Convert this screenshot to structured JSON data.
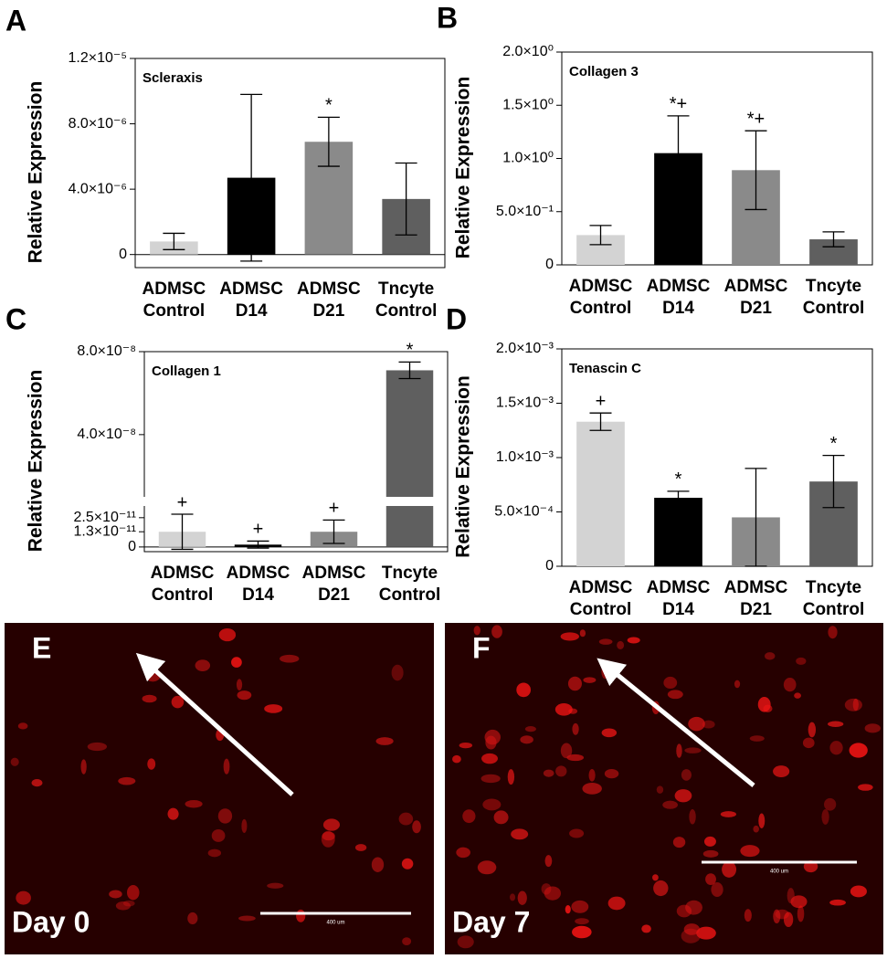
{
  "chart_data": [
    {
      "type": "bar",
      "letter": "A",
      "title": "Scleraxis",
      "ylabel": "Relative Expression",
      "categories": [
        [
          "ADMSC",
          "Control"
        ],
        [
          "ADMSC",
          "D14"
        ],
        [
          "ADMSC",
          "D21"
        ],
        [
          "Tncyte",
          "Control"
        ]
      ],
      "values": [
        8e-07,
        4.7e-06,
        6.9e-06,
        3.4e-06
      ],
      "errors": [
        5e-07,
        5.1e-06,
        1.5e-06,
        2.2e-06
      ],
      "annotations": [
        null,
        null,
        "*",
        null
      ],
      "colors": [
        "#d3d3d3",
        "#000000",
        "#8a8a8a",
        "#5f5f5f"
      ],
      "ylim": [
        -8e-07,
        1.2e-05
      ],
      "yticks": [
        0,
        {
          "value": 4e-06,
          "label": "4.0×10⁻⁶"
        },
        {
          "value": 8e-06,
          "label": "8.0×10⁻⁶"
        },
        {
          "value": 1.2e-05,
          "label": "1.2×10⁻⁵"
        }
      ]
    },
    {
      "type": "bar",
      "letter": "B",
      "title": "Collagen 3",
      "ylabel": "Relative Expression",
      "categories": [
        [
          "ADMSC",
          "Control"
        ],
        [
          "ADMSC",
          "D14"
        ],
        [
          "ADMSC",
          "D21"
        ],
        [
          "Tncyte",
          "Control"
        ]
      ],
      "values": [
        0.28,
        1.05,
        0.89,
        0.24
      ],
      "errors": [
        0.09,
        0.35,
        0.37,
        0.07
      ],
      "annotations": [
        null,
        "*+",
        "*+",
        null
      ],
      "colors": [
        "#d3d3d3",
        "#000000",
        "#8a8a8a",
        "#5f5f5f"
      ],
      "ylim": [
        0,
        2.0
      ],
      "yticks": [
        0,
        {
          "value": 0.5,
          "label": "5.0×10⁻¹"
        },
        {
          "value": 1.0,
          "label": "1.0×10⁰"
        },
        {
          "value": 1.5,
          "label": "1.5×10⁰"
        },
        {
          "value": 2.0,
          "label": "2.0×10⁰"
        }
      ]
    },
    {
      "type": "bar",
      "letter": "C",
      "title": "Collagen 1",
      "ylabel": "Relative Expression",
      "categories": [
        [
          "ADMSC",
          "Control"
        ],
        [
          "ADMSC",
          "D14"
        ],
        [
          "ADMSC",
          "D21"
        ],
        [
          "Tncyte",
          "Control"
        ]
      ],
      "values": [
        1.3e-11,
        2e-12,
        1.3e-11,
        7.1e-08
      ],
      "errors": [
        1.5e-11,
        3e-12,
        1e-11,
        4e-09
      ],
      "annotations": [
        "+",
        "+",
        "+",
        "*"
      ],
      "colors": [
        "#d3d3d3",
        "#000000",
        "#8a8a8a",
        "#5f5f5f"
      ],
      "ylim": [
        -4e-12,
        8e-08
      ],
      "ybreak": [
        3.5e-11,
        1e-08
      ],
      "yticks": [
        0,
        {
          "value": 1.3e-11,
          "label": "1.3×10⁻¹¹"
        },
        {
          "value": 2.5e-11,
          "label": "2.5×10⁻¹¹"
        },
        {
          "value": 4e-08,
          "label": "4.0×10⁻⁸"
        },
        {
          "value": 8e-08,
          "label": "8.0×10⁻⁸"
        }
      ]
    },
    {
      "type": "bar",
      "letter": "D",
      "title": "Tenascin C",
      "ylabel": "Relative Expression",
      "categories": [
        [
          "ADMSC",
          "Control"
        ],
        [
          "ADMSC",
          "D14"
        ],
        [
          "ADMSC",
          "D21"
        ],
        [
          "Tncyte",
          "Control"
        ]
      ],
      "values": [
        0.00133,
        0.00063,
        0.00045,
        0.00078
      ],
      "errors": [
        8e-05,
        6e-05,
        0.00045,
        0.00024
      ],
      "annotations": [
        "+",
        "*",
        null,
        "*"
      ],
      "colors": [
        "#d3d3d3",
        "#000000",
        "#8a8a8a",
        "#5f5f5f"
      ],
      "ylim": [
        0,
        0.002
      ],
      "yticks": [
        0,
        {
          "value": 0.0005,
          "label": "5.0×10⁻⁴"
        },
        {
          "value": 0.001,
          "label": "1.0×10⁻³"
        },
        {
          "value": 0.0015,
          "label": "1.5×10⁻³"
        },
        {
          "value": 0.002,
          "label": "2.0×10⁻³"
        }
      ]
    }
  ],
  "images": [
    {
      "letter": "E",
      "label": "Day 0",
      "scale": "400 um"
    },
    {
      "letter": "F",
      "label": "Day 7",
      "scale": "400 um"
    }
  ]
}
